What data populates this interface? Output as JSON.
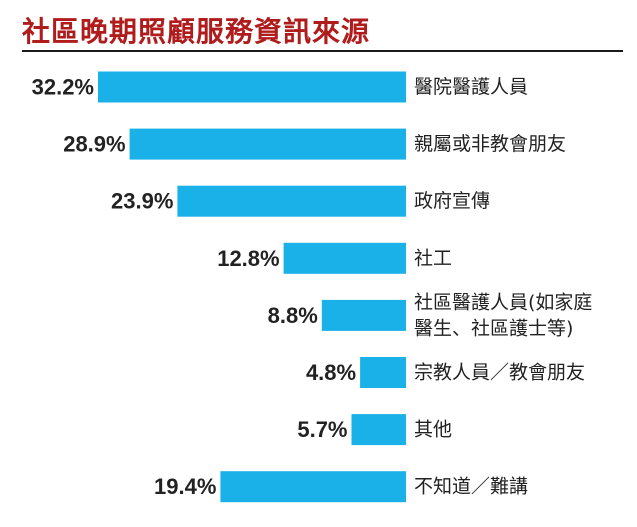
{
  "title": "社區晚期照顧服務資訊來源",
  "colors": {
    "title": "#b01c1c",
    "bar": "#1ab1e8",
    "text": "#222222",
    "rule": "#1a1a1a"
  },
  "chart_data": {
    "type": "bar",
    "orientation": "horizontal",
    "title": "社區晚期照顧服務資訊來源",
    "unit": "%",
    "categories": [
      [
        "醫院醫護人員"
      ],
      [
        "親屬或非教會朋友"
      ],
      [
        "政府宣傳"
      ],
      [
        "社工"
      ],
      [
        "社區醫護人員(如家庭",
        "醫生、社區護士等)"
      ],
      [
        "宗教人員／教會朋友"
      ],
      [
        "其他"
      ],
      [
        "不知道／難講"
      ]
    ],
    "values": [
      32.2,
      28.9,
      23.9,
      12.8,
      8.8,
      4.8,
      5.7,
      19.4
    ],
    "value_labels": [
      "32.2%",
      "28.9%",
      "23.9%",
      "12.8%",
      "8.8%",
      "4.8%",
      "5.7%",
      "19.4%"
    ],
    "xlim": [
      0,
      32.2
    ],
    "grid": false,
    "legend": "none"
  }
}
